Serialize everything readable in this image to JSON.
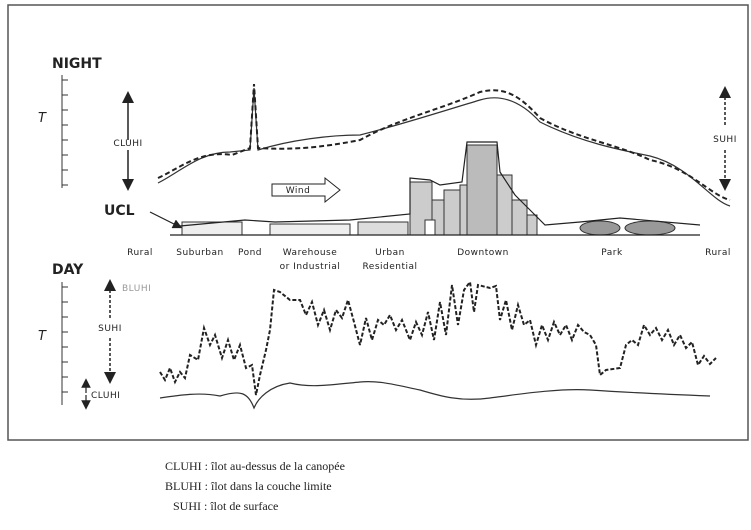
{
  "night": {
    "label": "NIGHT",
    "axis_label": "T",
    "cluhi": "CLUHI",
    "suhi": "SUHI",
    "wind": "Wind",
    "ucl": "UCL"
  },
  "zones": [
    {
      "lines": [
        "Rural"
      ]
    },
    {
      "lines": [
        "Suburban"
      ]
    },
    {
      "lines": [
        "Pond"
      ]
    },
    {
      "lines": [
        "Warehouse",
        "or Industrial"
      ]
    },
    {
      "lines": [
        "Urban",
        "Residential"
      ]
    },
    {
      "lines": [
        "Downtown"
      ]
    },
    {
      "lines": [
        "Park"
      ]
    },
    {
      "lines": [
        "Rural"
      ]
    }
  ],
  "day": {
    "label": "DAY",
    "axis_label": "T",
    "bluhi": "BLUHI",
    "suhi": "SUHI",
    "cluhi": "CLUHI"
  },
  "legend": [
    "CLUHI : îlot au-dessus de la canopée",
    "BLUHI : îlot dans la couche limite",
    "SUHI : îlot de surface"
  ]
}
